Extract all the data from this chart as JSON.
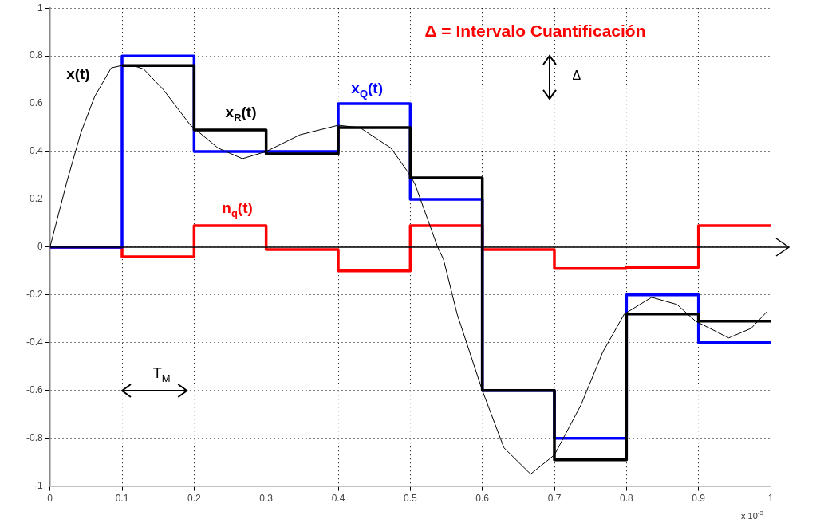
{
  "chart_data": {
    "type": "step",
    "series": [
      {
        "name": "x(t)",
        "type": "line",
        "color": "#000000",
        "x": [
          0,
          0.024,
          0.043,
          0.062,
          0.085,
          0.1,
          0.115,
          0.13,
          0.157,
          0.195,
          0.233,
          0.267,
          0.3,
          0.347,
          0.4,
          0.43,
          0.473,
          0.5,
          0.507,
          0.538,
          0.546,
          0.565,
          0.6,
          0.63,
          0.667,
          0.7,
          0.737,
          0.767,
          0.797,
          0.835,
          0.87,
          0.896,
          0.942,
          0.973,
          0.995
        ],
        "values": [
          0,
          0.28,
          0.48,
          0.63,
          0.75,
          0.76,
          0.76,
          0.745,
          0.66,
          0.51,
          0.415,
          0.37,
          0.4,
          0.47,
          0.51,
          0.5,
          0.415,
          0.3,
          0.26,
          0,
          -0.05,
          -0.28,
          -0.6,
          -0.84,
          -0.95,
          -0.87,
          -0.66,
          -0.44,
          -0.28,
          -0.21,
          -0.24,
          -0.31,
          -0.38,
          -0.34,
          -0.27
        ]
      },
      {
        "name": "x$_{R}$(t)",
        "color": "#000000",
        "x": [
          0.1,
          0.2,
          0.3,
          0.4,
          0.5,
          0.6,
          0.7,
          0.8,
          0.9,
          1.0
        ],
        "values": [
          0.76,
          0.49,
          0.39,
          0.5,
          0.29,
          -0.6,
          -0.89,
          -0.28,
          -0.31,
          -0.31
        ]
      },
      {
        "name": "x$_{Q}$(t)",
        "color": "#0000ff",
        "x": [
          0,
          0.1,
          0.2,
          0.3,
          0.4,
          0.5,
          0.6,
          0.7,
          0.8,
          0.9,
          1.0
        ],
        "values": [
          0,
          0.8,
          0.4,
          0.4,
          0.6,
          0.2,
          -0.6,
          -0.8,
          -0.2,
          -0.4,
          -0.4
        ]
      },
      {
        "name": "n$_{q}$(t)",
        "color": "#ff0000",
        "x": [
          0,
          0.1,
          0.2,
          0.3,
          0.4,
          0.5,
          0.6,
          0.7,
          0.8,
          0.9,
          1.0
        ],
        "values": [
          0,
          -0.04,
          0.09,
          -0.01,
          -0.1,
          0.09,
          -0.01,
          -0.09,
          -0.085,
          0.09,
          0.09
        ]
      }
    ],
    "xlim": [
      0,
      1
    ],
    "xticks": [
      0,
      0.1,
      0.2,
      0.3,
      0.4,
      0.5,
      0.6,
      0.7,
      0.8,
      0.9,
      1
    ],
    "ylim": [
      -1,
      1
    ],
    "yticks": [
      -1,
      -0.8,
      -0.6,
      -0.4,
      -0.2,
      0,
      0.2,
      0.4,
      0.6,
      0.8,
      1
    ],
    "grid": true,
    "legend": false,
    "ref_lines": [
      {
        "axis": "y",
        "value": 0,
        "color": "#000000"
      }
    ],
    "annotations": [
      "Δ = Intervalo Cuantificación",
      "Δ",
      "T$_{M}$",
      "x 10$^{-3}$"
    ]
  }
}
